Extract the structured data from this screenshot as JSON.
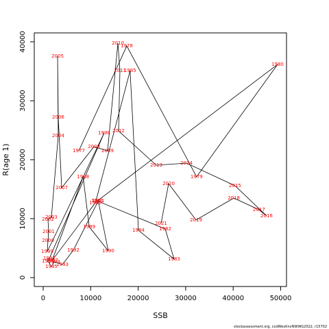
{
  "chart_data": {
    "type": "scatter",
    "x_label": "SSB",
    "y_label": "R(age 1)",
    "source": "stockassessment.org, codWestInvNWWG2022, r15702",
    "color": "#ff0000",
    "line_color": "#000000",
    "categories": [
      "1977",
      "1978",
      "1979",
      "1980",
      "1981",
      "1982",
      "1983",
      "1984",
      "1985",
      "1986",
      "1987",
      "1988",
      "1989",
      "1990",
      "1991",
      "1992",
      "1993",
      "1994",
      "1995",
      "1996",
      "1997",
      "1998",
      "1999",
      "2000",
      "2001",
      "2002",
      "2003",
      "2004",
      "2005",
      "2006",
      "2007",
      "2008",
      "2009",
      "2010",
      "2011",
      "2012",
      "2013",
      "2014",
      "2015",
      "2016",
      "2017",
      "2018",
      "2019",
      "2020",
      "2021"
    ],
    "x": [
      7500,
      17600,
      32300,
      49350,
      11400,
      25700,
      27560,
      20060,
      18300,
      11000,
      1880,
      8400,
      9700,
      13700,
      11600,
      6350,
      4040,
      2300,
      1730,
      1010,
      1300,
      12840,
      870,
      1010,
      1150,
      1010,
      1730,
      3170,
      3030,
      3170,
      3900,
      10680,
      13560,
      15730,
      16160,
      15870,
      23810,
      30160,
      40400,
      47040,
      45450,
      40120,
      32180,
      26410,
      24820
    ],
    "y": [
      21500,
      39300,
      17100,
      36160,
      13000,
      8260,
      3140,
      8020,
      35100,
      12700,
      2900,
      17100,
      8600,
      4530,
      13000,
      4650,
      2200,
      2670,
      1860,
      2800,
      3260,
      24530,
      4420,
      6280,
      7790,
      9880,
      10230,
      24070,
      37560,
      27210,
      15230,
      22200,
      21500,
      39770,
      35100,
      24880,
      19070,
      19420,
      15580,
      10470,
      11510,
      13490,
      9770,
      15930,
      9190
    ],
    "xlim": [
      -1876,
      51230
    ],
    "ylim": [
      -1512,
      41512
    ],
    "xticks": [
      0,
      10000,
      20000,
      30000,
      40000,
      50000
    ],
    "yticks": [
      0,
      10000,
      20000,
      30000,
      40000
    ]
  }
}
